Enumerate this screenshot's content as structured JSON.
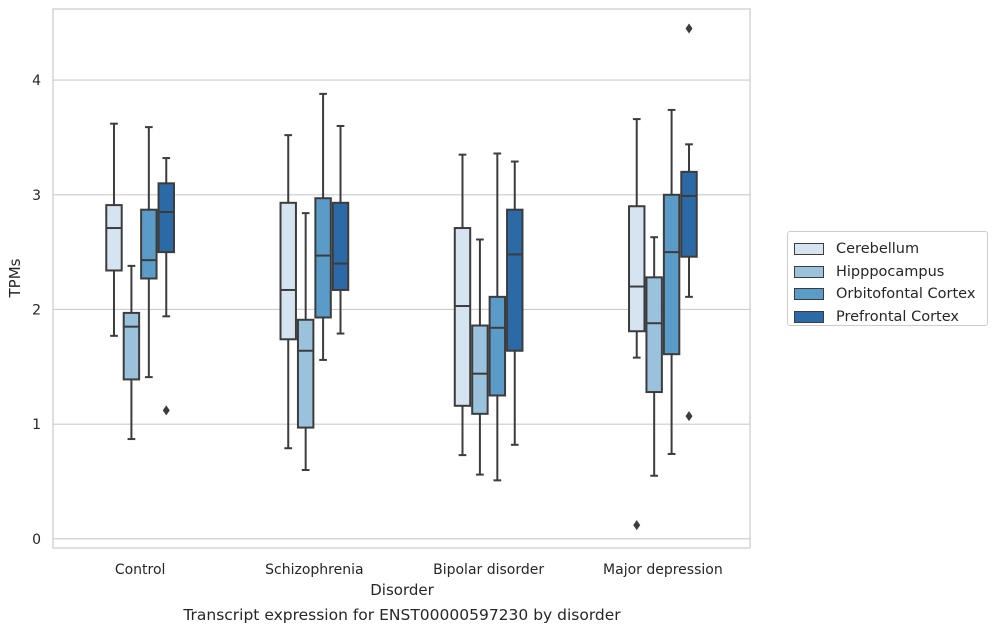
{
  "chart_data": {
    "type": "box",
    "xlabel": "Disorder",
    "ylabel": "TPMs",
    "ylim": [
      -0.08,
      4.62
    ],
    "yticks": [
      0,
      1,
      2,
      3,
      4
    ],
    "grid": "horizontal",
    "legend_position": "right",
    "categories": [
      "Control",
      "Schizophrenia",
      "Bipolar disorder",
      "Major depression"
    ],
    "series": [
      {
        "name": "Cerebellum",
        "color": "#d6e4f1",
        "boxes": [
          {
            "whislo": 1.77,
            "q1": 2.34,
            "med": 2.71,
            "q3": 2.91,
            "whishi": 3.62,
            "fliers": []
          },
          {
            "whislo": 0.79,
            "q1": 1.74,
            "med": 2.17,
            "q3": 2.93,
            "whishi": 3.52,
            "fliers": []
          },
          {
            "whislo": 0.73,
            "q1": 1.16,
            "med": 2.03,
            "q3": 2.71,
            "whishi": 3.35,
            "fliers": []
          },
          {
            "whislo": 1.58,
            "q1": 1.81,
            "med": 2.2,
            "q3": 2.9,
            "whishi": 3.66,
            "fliers": [
              0.12
            ]
          }
        ]
      },
      {
        "name": "Hipppocampus",
        "color": "#9ac2dc",
        "boxes": [
          {
            "whislo": 0.87,
            "q1": 1.39,
            "med": 1.85,
            "q3": 1.97,
            "whishi": 2.38,
            "fliers": []
          },
          {
            "whislo": 0.6,
            "q1": 0.97,
            "med": 1.64,
            "q3": 1.91,
            "whishi": 2.84,
            "fliers": []
          },
          {
            "whislo": 0.56,
            "q1": 1.09,
            "med": 1.44,
            "q3": 1.86,
            "whishi": 2.61,
            "fliers": []
          },
          {
            "whislo": 0.55,
            "q1": 1.28,
            "med": 1.88,
            "q3": 2.28,
            "whishi": 2.63,
            "fliers": []
          }
        ]
      },
      {
        "name": "Orbitofontal Cortex",
        "color": "#5b9bc8",
        "boxes": [
          {
            "whislo": 1.41,
            "q1": 2.27,
            "med": 2.43,
            "q3": 2.87,
            "whishi": 3.59,
            "fliers": []
          },
          {
            "whislo": 1.56,
            "q1": 1.93,
            "med": 2.47,
            "q3": 2.97,
            "whishi": 3.88,
            "fliers": []
          },
          {
            "whislo": 0.51,
            "q1": 1.25,
            "med": 1.84,
            "q3": 2.11,
            "whishi": 3.36,
            "fliers": []
          },
          {
            "whislo": 0.74,
            "q1": 1.61,
            "med": 2.5,
            "q3": 3.0,
            "whishi": 3.74,
            "fliers": []
          }
        ]
      },
      {
        "name": "Prefrontal Cortex",
        "color": "#2b6aa7",
        "boxes": [
          {
            "whislo": 1.94,
            "q1": 2.5,
            "med": 2.85,
            "q3": 3.1,
            "whishi": 3.32,
            "fliers": [
              1.12
            ]
          },
          {
            "whislo": 1.79,
            "q1": 2.17,
            "med": 2.4,
            "q3": 2.93,
            "whishi": 3.6,
            "fliers": []
          },
          {
            "whislo": 0.82,
            "q1": 1.64,
            "med": 2.48,
            "q3": 2.87,
            "whishi": 3.29,
            "fliers": []
          },
          {
            "whislo": 2.11,
            "q1": 2.46,
            "med": 2.99,
            "q3": 3.2,
            "whishi": 3.44,
            "fliers": [
              1.07,
              4.45
            ]
          }
        ]
      }
    ]
  },
  "caption": "Transcript expression for ENST00000597230 by disorder"
}
